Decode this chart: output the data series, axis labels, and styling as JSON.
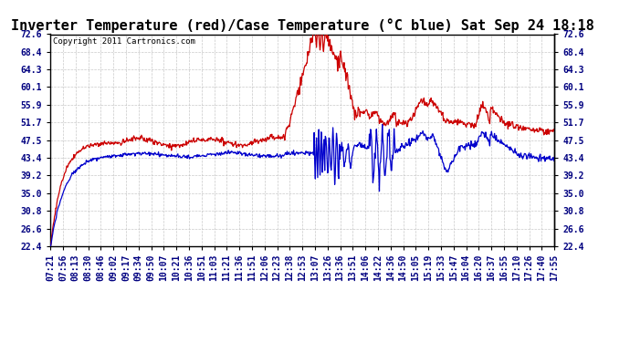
{
  "title": "Inverter Temperature (red)/Case Temperature (°C blue) Sat Sep 24 18:18",
  "copyright": "Copyright 2011 Cartronics.com",
  "yticks": [
    22.4,
    26.6,
    30.8,
    35.0,
    39.2,
    43.4,
    47.5,
    51.7,
    55.9,
    60.1,
    64.3,
    68.4,
    72.6
  ],
  "ylim": [
    22.4,
    72.6
  ],
  "background_color": "#ffffff",
  "grid_color": "#bbbbbb",
  "red_color": "#cc0000",
  "blue_color": "#0000cc",
  "title_fontsize": 11,
  "copyright_fontsize": 6.5,
  "tick_fontsize": 7,
  "xtick_labels": [
    "07:21",
    "07:56",
    "08:13",
    "08:30",
    "08:46",
    "09:02",
    "09:17",
    "09:34",
    "09:50",
    "10:07",
    "10:21",
    "10:36",
    "10:51",
    "11:03",
    "11:21",
    "11:36",
    "11:51",
    "12:06",
    "12:23",
    "12:38",
    "12:53",
    "13:07",
    "13:26",
    "13:36",
    "13:51",
    "14:06",
    "14:22",
    "14:36",
    "14:50",
    "15:05",
    "15:19",
    "15:33",
    "15:47",
    "16:04",
    "16:20",
    "16:37",
    "16:55",
    "17:10",
    "17:26",
    "17:40",
    "17:55"
  ]
}
